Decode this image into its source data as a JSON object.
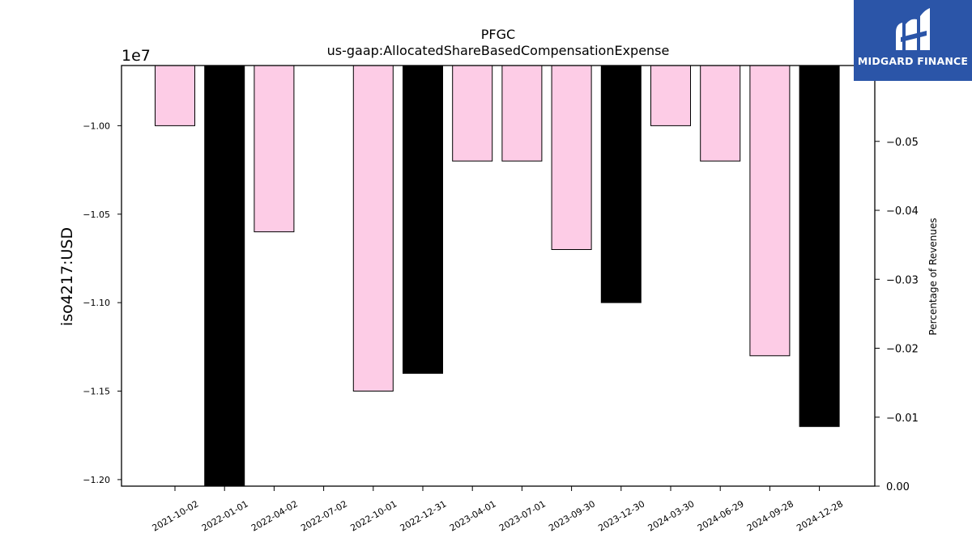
{
  "logo": {
    "text": "MIDGARD FINANCE",
    "icon": "midgard-logo-icon",
    "background": "#2b55a8"
  },
  "chart_data": {
    "type": "bar",
    "title": "PFGC",
    "subtitle": "us-gaap:AllocatedShareBasedCompensationExpense",
    "ylabel": "iso4217:USD",
    "y2label": "Percentage of Revenues",
    "y_multiplier_label": "1e7",
    "categories": [
      "2021-10-02",
      "2022-01-01",
      "2022-04-02",
      "2022-07-02",
      "2022-10-01",
      "2022-12-31",
      "2023-04-01",
      "2023-07-01",
      "2023-09-30",
      "2023-12-30",
      "2024-03-30",
      "2024-06-29",
      "2024-09-28",
      "2024-12-28"
    ],
    "values": [
      -10000000,
      -12100000,
      -10600000,
      null,
      -11500000,
      -11400000,
      -10200000,
      -10200000,
      -10700000,
      -11000000,
      -10000000,
      -10200000,
      -11300000,
      -11700000
    ],
    "bar_colors": [
      "#fdcce6",
      "#000000",
      "#fdcce6",
      null,
      "#fdcce6",
      "#000000",
      "#fdcce6",
      "#fdcce6",
      "#fdcce6",
      "#000000",
      "#fdcce6",
      "#fdcce6",
      "#fdcce6",
      "#000000"
    ],
    "ylim": [
      -12037000,
      -9660000
    ],
    "yticks": [
      -12000000,
      -11500000,
      -11000000,
      -10500000,
      -10000000
    ],
    "ytick_labels": [
      "−1.20",
      "−1.15",
      "−1.10",
      "−1.05",
      "−1.00"
    ],
    "y2lim": [
      0,
      -0.061
    ],
    "y2ticks": [
      0,
      -0.01,
      -0.02,
      -0.03,
      -0.04,
      -0.05
    ],
    "y2tick_labels": [
      "0.00",
      "−0.01",
      "−0.02",
      "−0.03",
      "−0.04",
      "−0.05"
    ],
    "grid": false
  }
}
